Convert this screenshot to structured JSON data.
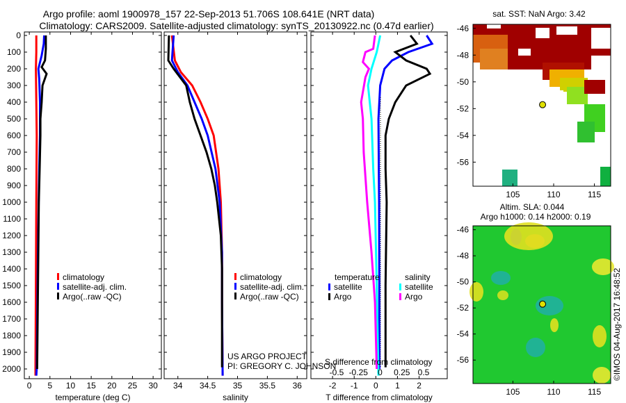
{
  "header": {
    "title1": "Argo profile: aoml 1900978_157 22-Sep-2013 51.706S 108.641E (NRT data)",
    "title2": "Climatology: CARS2009. Satellite-adjusted climatology: synTS_20130922.nc (0.47d earlier)"
  },
  "colors": {
    "climatology": "#ff0000",
    "satellite": "#0000ff",
    "argo": "#000000",
    "sal_satellite": "#00ffff",
    "sal_argo": "#ff00ff"
  },
  "chart_data": [
    {
      "type": "line",
      "id": "temperature",
      "xlabel": "temperature (deg C)",
      "xlim": [
        -1.2,
        32
      ],
      "xticks": [
        0,
        5,
        10,
        15,
        20,
        25,
        30
      ],
      "ylim": [
        2050,
        0
      ],
      "yticks": [
        0,
        100,
        200,
        300,
        400,
        500,
        600,
        700,
        800,
        900,
        1000,
        1100,
        1200,
        1300,
        1400,
        1500,
        1600,
        1700,
        1800,
        1900,
        2000
      ],
      "legend": [
        "climatology",
        "satellite-adj. clim.",
        "Argo(..raw -QC)"
      ],
      "series": [
        {
          "name": "climatology",
          "color": "#ff0000",
          "points": [
            [
              1.7,
              0
            ],
            [
              1.7,
              100
            ],
            [
              1.6,
              200
            ],
            [
              1.7,
              400
            ],
            [
              1.8,
              600
            ],
            [
              1.7,
              1000
            ],
            [
              1.6,
              1500
            ],
            [
              1.5,
              2000
            ],
            [
              1.5,
              2040
            ]
          ]
        },
        {
          "name": "satellite-adj. clim.",
          "color": "#0000ff",
          "points": [
            [
              3.6,
              0
            ],
            [
              3.5,
              50
            ],
            [
              3.0,
              120
            ],
            [
              2.2,
              200
            ],
            [
              2.4,
              260
            ],
            [
              2.6,
              400
            ],
            [
              2.6,
              600
            ],
            [
              2.4,
              800
            ],
            [
              2.2,
              1100
            ],
            [
              2.0,
              1500
            ],
            [
              1.8,
              2000
            ],
            [
              1.7,
              2040
            ]
          ]
        },
        {
          "name": "Argo(..raw -QC)",
          "color": "#000000",
          "points": [
            [
              4.0,
              0
            ],
            [
              4.0,
              80
            ],
            [
              3.8,
              150
            ],
            [
              3.0,
              190
            ],
            [
              4.2,
              230
            ],
            [
              3.2,
              300
            ],
            [
              3.0,
              400
            ],
            [
              2.7,
              500
            ],
            [
              2.7,
              600
            ],
            [
              2.5,
              800
            ],
            [
              2.3,
              1000
            ],
            [
              2.1,
              1500
            ],
            [
              1.9,
              2000
            ]
          ]
        }
      ]
    },
    {
      "type": "line",
      "id": "salinity",
      "xlabel": "salinity",
      "xlim": [
        33.77,
        36.16
      ],
      "xticks": [
        34,
        34.5,
        35,
        35.5,
        36
      ],
      "ylim": [
        2050,
        0
      ],
      "legend": [
        "climatology",
        "satellite-adj. clim.",
        "Argo(..raw -QC)"
      ],
      "annotation": [
        "US ARGO PROJECT",
        "PI: GREGORY C. JOHNSON"
      ],
      "series": [
        {
          "name": "climatology",
          "color": "#ff0000",
          "points": [
            [
              33.9,
              0
            ],
            [
              33.95,
              150
            ],
            [
              34.05,
              220
            ],
            [
              34.24,
              300
            ],
            [
              34.38,
              400
            ],
            [
              34.5,
              500
            ],
            [
              34.6,
              600
            ],
            [
              34.68,
              800
            ],
            [
              34.72,
              1000
            ],
            [
              34.74,
              1300
            ],
            [
              34.74,
              1600
            ],
            [
              34.75,
              2040
            ]
          ]
        },
        {
          "name": "satellite-adj. clim.",
          "color": "#0000ff",
          "points": [
            [
              33.93,
              0
            ],
            [
              33.9,
              150
            ],
            [
              34.0,
              220
            ],
            [
              34.16,
              300
            ],
            [
              34.28,
              400
            ],
            [
              34.4,
              500
            ],
            [
              34.5,
              600
            ],
            [
              34.63,
              800
            ],
            [
              34.7,
              1000
            ],
            [
              34.74,
              1300
            ],
            [
              34.74,
              1600
            ],
            [
              34.75,
              2040
            ]
          ]
        },
        {
          "name": "Argo(..raw -QC)",
          "color": "#000000",
          "points": [
            [
              33.85,
              0
            ],
            [
              33.84,
              150
            ],
            [
              33.93,
              200
            ],
            [
              34.14,
              300
            ],
            [
              34.2,
              400
            ],
            [
              34.28,
              500
            ],
            [
              34.38,
              600
            ],
            [
              34.48,
              700
            ],
            [
              34.56,
              800
            ],
            [
              34.62,
              900
            ],
            [
              34.66,
              1000
            ],
            [
              34.72,
              1200
            ],
            [
              34.74,
              1400
            ],
            [
              34.74,
              1700
            ],
            [
              34.74,
              1990
            ]
          ]
        }
      ]
    },
    {
      "type": "line",
      "id": "differences",
      "xlabel": "T difference from climatology",
      "xlabel2": "S difference from climatology",
      "xlim": [
        -3,
        3.3
      ],
      "xticks": [
        -2,
        -1,
        0,
        1,
        2
      ],
      "x2ticks": [
        "-0.5",
        "-0.25",
        "0",
        "0.25",
        "0.5"
      ],
      "ylim": [
        2050,
        0
      ],
      "legend_titles": [
        "temperature",
        "salinity"
      ],
      "legend": [
        "satellite",
        "Argo",
        "satellite",
        "Argo"
      ],
      "series": [
        {
          "name": "T satellite",
          "color": "#0000ff",
          "axis": "T",
          "points": [
            [
              2.35,
              0
            ],
            [
              2.6,
              50
            ],
            [
              1.5,
              100
            ],
            [
              0.75,
              150
            ],
            [
              0.4,
              200
            ],
            [
              0.2,
              300
            ],
            [
              0.12,
              500
            ],
            [
              0.15,
              1000
            ],
            [
              0.17,
              2000
            ]
          ]
        },
        {
          "name": "T Argo",
          "color": "#000000",
          "axis": "T",
          "points": [
            [
              1.6,
              0
            ],
            [
              1.9,
              50
            ],
            [
              0.9,
              100
            ],
            [
              1.4,
              150
            ],
            [
              2.35,
              200
            ],
            [
              2.5,
              230
            ],
            [
              1.4,
              300
            ],
            [
              0.9,
              400
            ],
            [
              0.6,
              500
            ],
            [
              0.45,
              600
            ],
            [
              0.45,
              800
            ],
            [
              0.5,
              1000
            ],
            [
              0.45,
              1500
            ],
            [
              0.45,
              1990
            ]
          ]
        },
        {
          "name": "S satellite",
          "color": "#00ffff",
          "axis": "S",
          "points": [
            [
              0.05,
              0
            ],
            [
              0.01,
              100
            ],
            [
              -0.05,
              200
            ],
            [
              -0.09,
              300
            ],
            [
              -0.05,
              500
            ],
            [
              -0.03,
              800
            ],
            [
              -0.01,
              1000
            ],
            [
              0.01,
              1500
            ],
            [
              0.03,
              2040
            ]
          ]
        },
        {
          "name": "S Argo",
          "color": "#ff00ff",
          "axis": "S",
          "points": [
            [
              -0.01,
              0
            ],
            [
              -0.03,
              80
            ],
            [
              -0.12,
              100
            ],
            [
              -0.15,
              160
            ],
            [
              -0.08,
              200
            ],
            [
              -0.12,
              250
            ],
            [
              -0.17,
              400
            ],
            [
              -0.15,
              500
            ],
            [
              -0.14,
              700
            ],
            [
              -0.1,
              1000
            ],
            [
              -0.05,
              1300
            ],
            [
              -0.01,
              1600
            ],
            [
              0.01,
              2000
            ]
          ]
        }
      ]
    },
    {
      "type": "heatmap",
      "id": "sst-map",
      "title": "sat. SST: NaN Argo: 3.42",
      "xlim": [
        100.1,
        117
      ],
      "ylim": [
        -57.8,
        -45.7
      ],
      "xticks": [
        105,
        110,
        115
      ],
      "yticks": [
        -46,
        -48,
        -50,
        -52,
        -54,
        -56
      ],
      "argo_position": [
        108.641,
        -51.706
      ]
    },
    {
      "type": "heatmap",
      "id": "sla-map",
      "title1": "Altim. SLA: 0.044",
      "title2": "Argo h1000: 0.14 h2000: 0.19",
      "xlim": [
        100.1,
        117
      ],
      "ylim": [
        -57.8,
        -45.7
      ],
      "xticks": [
        105,
        110,
        115
      ],
      "yticks": [
        -46,
        -48,
        -50,
        -52,
        -54,
        -56
      ],
      "argo_position": [
        108.641,
        -51.706
      ]
    }
  ],
  "footer": {
    "credit": "©IMOS 04-Aug-2017 16:48:52"
  }
}
